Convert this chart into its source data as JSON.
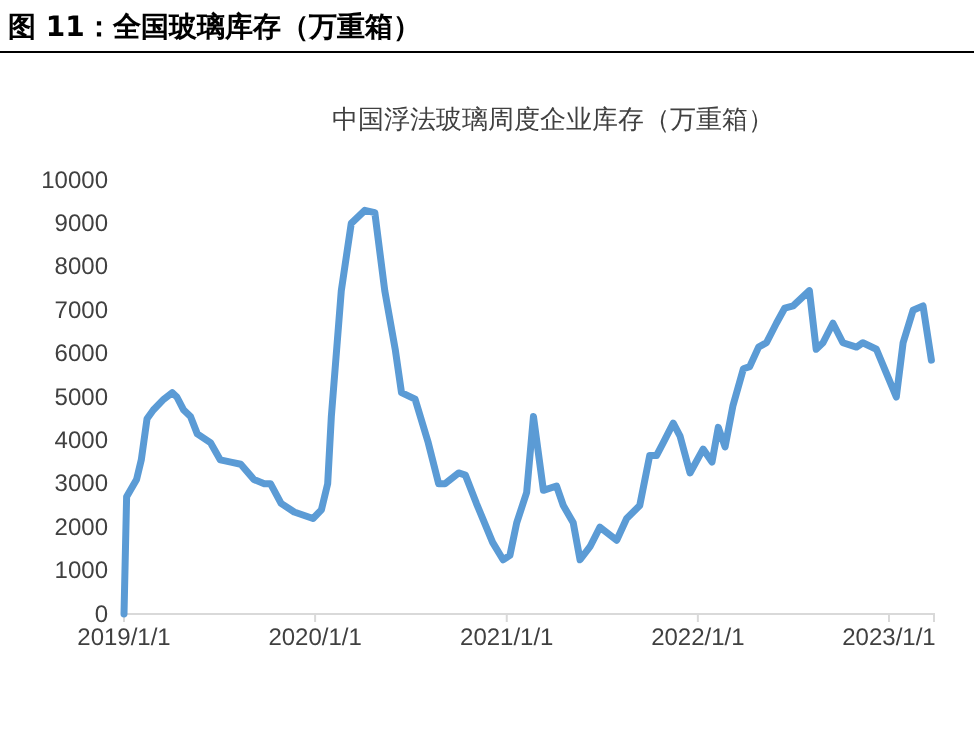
{
  "chart_data": {
    "type": "line",
    "title": "图 11：全国玻璃库存（万重箱）",
    "subtitle": "中国浮法玻璃周度企业库存（万重箱）",
    "x": [
      "2019-01-01",
      "2019-01-06",
      "2019-01-25",
      "2019-02-03",
      "2019-02-14",
      "2019-02-26",
      "2019-03-18",
      "2019-04-03",
      "2019-04-12",
      "2019-04-25",
      "2019-05-08",
      "2019-05-21",
      "2019-06-15",
      "2019-07-04",
      "2019-07-24",
      "2019-08-12",
      "2019-09-06",
      "2019-09-26",
      "2019-10-08",
      "2019-10-28",
      "2019-11-22",
      "2019-12-28",
      "2020-01-13",
      "2020-01-25",
      "2020-02-01",
      "2020-02-20",
      "2020-03-10",
      "2020-04-05",
      "2020-04-24",
      "2020-05-13",
      "2020-06-02",
      "2020-06-14",
      "2020-07-10",
      "2020-08-04",
      "2020-08-24",
      "2020-09-05",
      "2020-10-01",
      "2020-10-14",
      "2020-11-04",
      "2020-12-05",
      "2020-12-25",
      "2021-01-07",
      "2021-01-20",
      "2021-02-08",
      "2021-02-21",
      "2021-03-12",
      "2021-04-06",
      "2021-04-19",
      "2021-05-08",
      "2021-05-21",
      "2021-06-09",
      "2021-06-28",
      "2021-07-30",
      "2021-08-18",
      "2021-09-12",
      "2021-10-01",
      "2021-10-14",
      "2021-10-27",
      "2021-11-15",
      "2021-11-28",
      "2021-12-17",
      "2022-01-11",
      "2022-01-28",
      "2022-02-09",
      "2022-02-22",
      "2022-03-09",
      "2022-03-29",
      "2022-04-10",
      "2022-04-27",
      "2022-05-12",
      "2022-05-31",
      "2022-06-16",
      "2022-07-02",
      "2022-08-02",
      "2022-08-15",
      "2022-08-28",
      "2022-09-16",
      "2022-10-05",
      "2022-10-31",
      "2022-11-12",
      "2022-12-08",
      "2022-12-27",
      "2023-01-15",
      "2023-01-28",
      "2023-02-16",
      "2023-03-07",
      "2023-03-23"
    ],
    "series": [
      {
        "color": "#5b9bd5",
        "values": [
          0,
          2700,
          3100,
          3550,
          4500,
          4700,
          4950,
          5100,
          5000,
          4700,
          4550,
          4150,
          3950,
          3550,
          3500,
          3450,
          3100,
          3000,
          3000,
          2550,
          2350,
          2200,
          2400,
          3000,
          4550,
          7450,
          9000,
          9300,
          9250,
          7450,
          6100,
          5100,
          4950,
          3950,
          3000,
          3000,
          3250,
          3200,
          2550,
          1650,
          1250,
          1350,
          2100,
          2800,
          4550,
          2850,
          2950,
          2500,
          2100,
          1250,
          1550,
          2000,
          1700,
          2200,
          2500,
          3650,
          3650,
          3950,
          4400,
          4100,
          3250,
          3800,
          3500,
          4300,
          3850,
          4800,
          5650,
          5700,
          6150,
          6250,
          6700,
          7050,
          7100,
          7450,
          6100,
          6250,
          6700,
          6250,
          6150,
          6250,
          6100,
          5550,
          5000,
          6250,
          7000,
          7100,
          5850
        ]
      }
    ],
    "xlim": [
      "2019-01-01",
      "2023-03-28"
    ],
    "xticks": [
      {
        "value": "2019-01-01",
        "label": "2019/1/1"
      },
      {
        "value": "2020-01-01",
        "label": "2020/1/1"
      },
      {
        "value": "2021-01-01",
        "label": "2021/1/1"
      },
      {
        "value": "2022-01-01",
        "label": "2022/1/1"
      },
      {
        "value": "2023-01-01",
        "label": "2023/1/1"
      }
    ],
    "ylim": [
      0,
      10000
    ],
    "yticks": [
      0,
      1000,
      2000,
      3000,
      4000,
      5000,
      6000,
      7000,
      8000,
      9000,
      10000
    ],
    "grid": false,
    "marker": "none",
    "line_style": "solid"
  }
}
